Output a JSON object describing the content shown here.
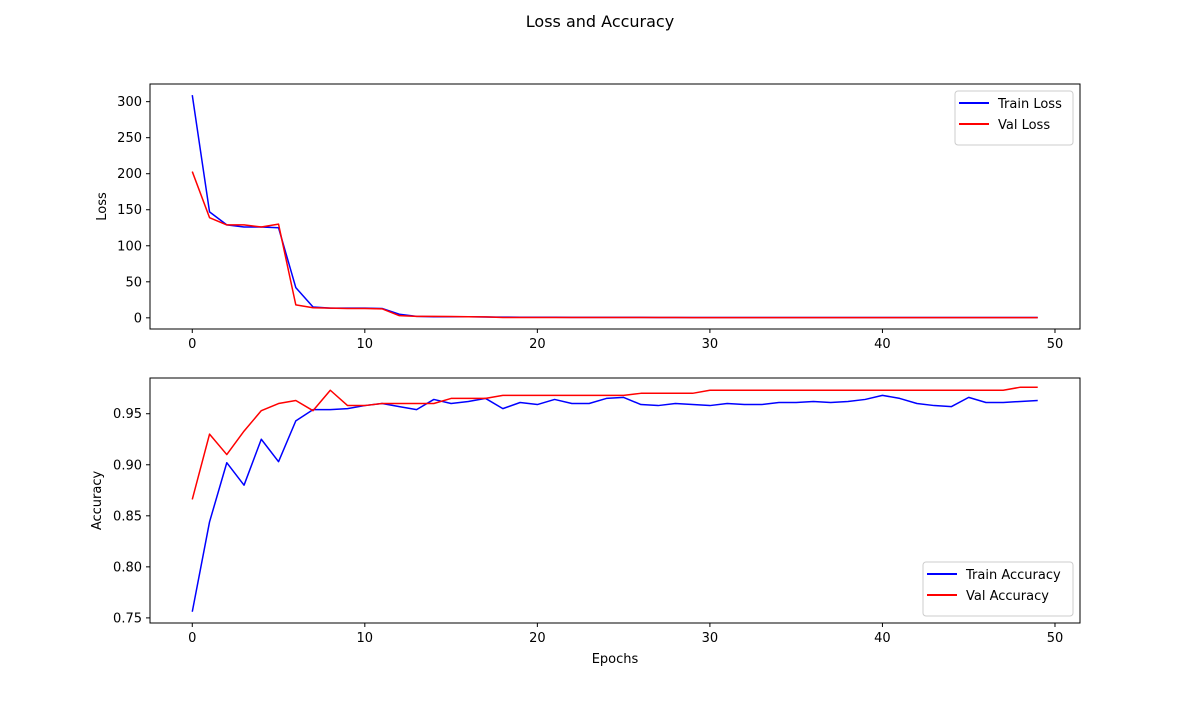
{
  "figure": {
    "title": "Loss and Accuracy"
  },
  "chart_data": [
    {
      "type": "line",
      "title": "",
      "xlabel": "",
      "ylabel": "Loss",
      "xlim": [
        -2.45,
        51.45
      ],
      "ylim": [
        -15.5,
        324.5
      ],
      "xticks": [
        0,
        10,
        20,
        30,
        40,
        50
      ],
      "yticks": [
        0,
        50,
        100,
        150,
        200,
        250,
        300
      ],
      "grid": false,
      "legend_position": "upper right",
      "x": [
        0,
        1,
        2,
        3,
        4,
        5,
        6,
        7,
        8,
        9,
        10,
        11,
        12,
        13,
        14,
        15,
        16,
        17,
        18,
        19,
        20,
        21,
        22,
        23,
        24,
        25,
        26,
        27,
        28,
        29,
        30,
        31,
        32,
        33,
        34,
        35,
        36,
        37,
        38,
        39,
        40,
        41,
        42,
        43,
        44,
        45,
        46,
        47,
        48,
        49
      ],
      "series": [
        {
          "name": "Train Loss",
          "color": "#0000ff",
          "values": [
            309,
            147,
            129,
            126,
            126,
            125,
            42,
            15,
            13.5,
            13.5,
            13.5,
            13,
            5,
            2,
            1.5,
            1.5,
            1.5,
            1.2,
            1,
            0.8,
            0.8,
            0.8,
            0.7,
            0.7,
            0.6,
            0.6,
            0.6,
            0.5,
            0.5,
            0.5,
            0.5,
            0.5,
            0.5,
            0.5,
            0.5,
            0.5,
            0.5,
            0.5,
            0.5,
            0.5,
            0.5,
            0.5,
            0.5,
            0.5,
            0.5,
            0.5,
            0.5,
            0.5,
            0.5,
            0.5
          ]
        },
        {
          "name": "Val Loss",
          "color": "#ff0000",
          "values": [
            203,
            139,
            129,
            129,
            126,
            130,
            18,
            14,
            13.5,
            13,
            13,
            12.5,
            3,
            2,
            2,
            1.8,
            1.5,
            1.3,
            0.5,
            0.5,
            0.5,
            0.5,
            0.5,
            0.5,
            0.4,
            0.4,
            0.4,
            0.4,
            0.4,
            0.3,
            0.3,
            0.3,
            0.3,
            0.3,
            0.3,
            0.3,
            0.3,
            0.3,
            0.3,
            0.3,
            0.3,
            0.3,
            0.3,
            0.3,
            0.3,
            0.3,
            0.3,
            0.3,
            0.3,
            0.3
          ]
        }
      ]
    },
    {
      "type": "line",
      "title": "",
      "xlabel": "Epochs",
      "ylabel": "Accuracy",
      "xlim": [
        -2.45,
        51.45
      ],
      "ylim": [
        0.745,
        0.985
      ],
      "xticks": [
        0,
        10,
        20,
        30,
        40,
        50
      ],
      "yticks": [
        0.75,
        0.8,
        0.85,
        0.9,
        0.95
      ],
      "grid": false,
      "legend_position": "lower right",
      "x": [
        0,
        1,
        2,
        3,
        4,
        5,
        6,
        7,
        8,
        9,
        10,
        11,
        12,
        13,
        14,
        15,
        16,
        17,
        18,
        19,
        20,
        21,
        22,
        23,
        24,
        25,
        26,
        27,
        28,
        29,
        30,
        31,
        32,
        33,
        34,
        35,
        36,
        37,
        38,
        39,
        40,
        41,
        42,
        43,
        44,
        45,
        46,
        47,
        48,
        49
      ],
      "series": [
        {
          "name": "Train Accuracy",
          "color": "#0000ff",
          "values": [
            0.756,
            0.844,
            0.902,
            0.88,
            0.925,
            0.903,
            0.943,
            0.954,
            0.954,
            0.955,
            0.958,
            0.96,
            0.957,
            0.954,
            0.964,
            0.96,
            0.962,
            0.965,
            0.955,
            0.961,
            0.959,
            0.964,
            0.96,
            0.96,
            0.965,
            0.966,
            0.959,
            0.958,
            0.96,
            0.959,
            0.958,
            0.96,
            0.959,
            0.959,
            0.961,
            0.961,
            0.962,
            0.961,
            0.962,
            0.964,
            0.968,
            0.965,
            0.96,
            0.958,
            0.957,
            0.966,
            0.961,
            0.961,
            0.962,
            0.963
          ]
        },
        {
          "name": "Val Accuracy",
          "color": "#ff0000",
          "values": [
            0.866,
            0.93,
            0.91,
            0.933,
            0.953,
            0.96,
            0.963,
            0.953,
            0.973,
            0.958,
            0.958,
            0.96,
            0.96,
            0.96,
            0.96,
            0.965,
            0.965,
            0.965,
            0.968,
            0.968,
            0.968,
            0.968,
            0.968,
            0.968,
            0.968,
            0.968,
            0.97,
            0.97,
            0.97,
            0.97,
            0.973,
            0.973,
            0.973,
            0.973,
            0.973,
            0.973,
            0.973,
            0.973,
            0.973,
            0.973,
            0.973,
            0.973,
            0.973,
            0.973,
            0.973,
            0.973,
            0.973,
            0.973,
            0.976,
            0.976
          ]
        }
      ]
    }
  ]
}
